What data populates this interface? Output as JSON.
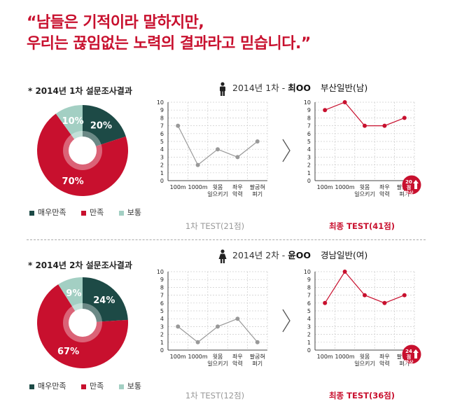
{
  "headline": {
    "line1": "“남들은 기적이라 말하지만,",
    "line2": "우리는 끊임없는 노력의 결과라고 믿습니다.”"
  },
  "colors": {
    "very_satisfied": "#1d4a46",
    "satisfied": "#c8102e",
    "normal": "#a3cfc3",
    "grid": "#cccccc",
    "line_before": "#999999",
    "line_after": "#c8102e"
  },
  "legend": {
    "very_satisfied": "매우만족",
    "satisfied": "만족",
    "normal": "보통"
  },
  "sections": [
    {
      "survey_title": "* 2014년 1차 설문조사결과",
      "person": {
        "prefix": "2014년 1차 - ",
        "name": "최OO",
        "group": "부산일반(남)",
        "gender_icon": "male-icon"
      },
      "pie": {
        "very_satisfied": 20,
        "satisfied": 70,
        "normal": 10
      },
      "pie_labels": {
        "very_satisfied": "20%",
        "satisfied": "70%",
        "normal": "10%"
      },
      "before_caption": "1차 TEST(21점)",
      "after_caption": "최종 TEST(41점)",
      "badge": {
        "line1": "20점",
        "line2": "향상"
      }
    },
    {
      "survey_title": "* 2014년 2차 설문조사결과",
      "person": {
        "prefix": "2014년 2차 - ",
        "name": "윤OO",
        "group": "경남일반(여)",
        "gender_icon": "female-icon"
      },
      "pie": {
        "very_satisfied": 24,
        "satisfied": 67,
        "normal": 9
      },
      "pie_labels": {
        "very_satisfied": "24%",
        "satisfied": "67%",
        "normal": "9%"
      },
      "before_caption": "1차 TEST(12점)",
      "after_caption": "최종 TEST(36점)",
      "badge": {
        "line1": "24점",
        "line2": "향상"
      }
    }
  ],
  "chart_data": [
    {
      "type": "pie",
      "categories": [
        "매우만족",
        "만족",
        "보통"
      ],
      "values": [
        20,
        70,
        10
      ]
    },
    {
      "type": "line",
      "categories": [
        "100m",
        "1000m",
        "윗몸일으키기",
        "좌우악력",
        "팔굽혀펴기"
      ],
      "x_labels": [
        [
          "100m"
        ],
        [
          "1000m"
        ],
        [
          "윗몸",
          "일으키기"
        ],
        [
          "좌우",
          "악력"
        ],
        [
          "팔굽혀",
          "펴기"
        ]
      ],
      "values": [
        7,
        2,
        4,
        3,
        5
      ],
      "ylim": [
        0,
        10
      ],
      "yticks": [
        "0",
        "1",
        "2",
        "3",
        "4",
        "5",
        "6",
        "7",
        "8",
        "9",
        "10"
      ],
      "grid": true
    },
    {
      "type": "line",
      "categories": [
        "100m",
        "1000m",
        "윗몸일으키기",
        "좌우악력",
        "팔굽혀펴기"
      ],
      "x_labels": [
        [
          "100m"
        ],
        [
          "1000m"
        ],
        [
          "윗몸",
          "일으키기"
        ],
        [
          "좌우",
          "악력"
        ],
        [
          "팔굽혀",
          "펴기"
        ]
      ],
      "values": [
        9,
        10,
        7,
        7,
        8
      ],
      "ylim": [
        0,
        10
      ],
      "yticks": [
        "0",
        "1",
        "2",
        "3",
        "4",
        "5",
        "6",
        "7",
        "8",
        "9",
        "10"
      ],
      "grid": true
    },
    {
      "type": "pie",
      "categories": [
        "매우만족",
        "만족",
        "보통"
      ],
      "values": [
        24,
        67,
        9
      ]
    },
    {
      "type": "line",
      "categories": [
        "100m",
        "1000m",
        "윗몸일으키기",
        "좌우악력",
        "팔굽혀펴기"
      ],
      "x_labels": [
        [
          "100m"
        ],
        [
          "1000m"
        ],
        [
          "윗몸",
          "일으키기"
        ],
        [
          "좌우",
          "악력"
        ],
        [
          "팔굽혀",
          "펴기"
        ]
      ],
      "values": [
        3,
        1,
        3,
        4,
        1
      ],
      "ylim": [
        0,
        10
      ],
      "yticks": [
        "0",
        "1",
        "2",
        "3",
        "4",
        "5",
        "6",
        "7",
        "8",
        "9",
        "10"
      ],
      "grid": true
    },
    {
      "type": "line",
      "categories": [
        "100m",
        "1000m",
        "윗몸일으키기",
        "좌우악력",
        "팔굽혀펴기"
      ],
      "x_labels": [
        [
          "100m"
        ],
        [
          "1000m"
        ],
        [
          "윗몸",
          "일으키기"
        ],
        [
          "좌우",
          "악력"
        ],
        [
          "팔굽혀",
          "펴기"
        ]
      ],
      "values": [
        6,
        10,
        7,
        6,
        7
      ],
      "ylim": [
        0,
        10
      ],
      "yticks": [
        "0",
        "1",
        "2",
        "3",
        "4",
        "5",
        "6",
        "7",
        "8",
        "9",
        "10"
      ],
      "grid": true
    }
  ]
}
